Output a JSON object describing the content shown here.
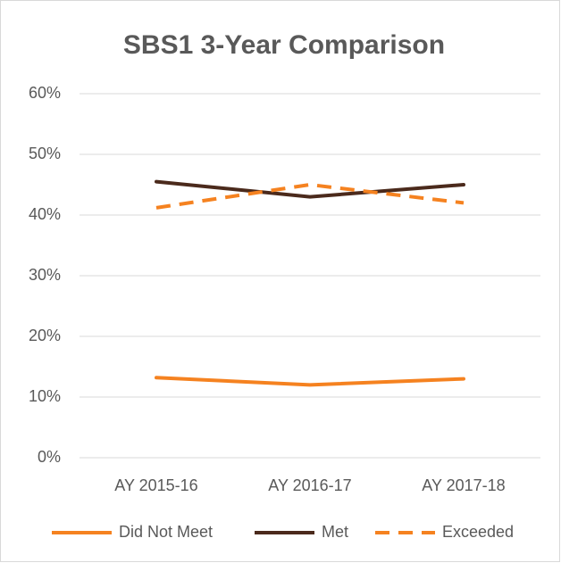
{
  "chart_data": {
    "type": "line",
    "title": "SBS1 3-Year Comparison",
    "categories": [
      "AY 2015-16",
      "AY 2016-17",
      "AY 2017-18"
    ],
    "series": [
      {
        "name": "Did Not Meet",
        "color": "#f58220",
        "dash": false,
        "values": [
          13.2,
          12,
          13
        ]
      },
      {
        "name": "Met",
        "color": "#4b2a1c",
        "dash": false,
        "values": [
          45.5,
          43,
          45
        ]
      },
      {
        "name": "Exceeded",
        "color": "#f58220",
        "dash": true,
        "values": [
          41.2,
          45,
          42
        ]
      }
    ],
    "ylim": [
      0,
      60
    ],
    "yticks": [
      {
        "value": 0,
        "label": "0%"
      },
      {
        "value": 10,
        "label": "10%"
      },
      {
        "value": 20,
        "label": "20%"
      },
      {
        "value": 30,
        "label": "30%"
      },
      {
        "value": 40,
        "label": "40%"
      },
      {
        "value": 50,
        "label": "50%"
      },
      {
        "value": 60,
        "label": "60%"
      }
    ],
    "grid": true,
    "legend": "bottom"
  }
}
